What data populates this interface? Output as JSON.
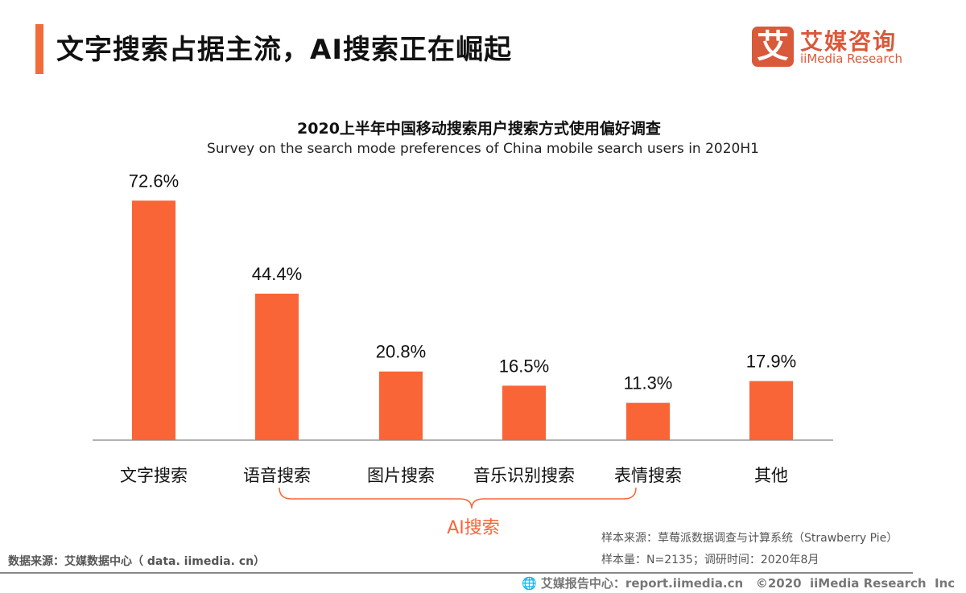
{
  "header": {
    "title": "文字搜索占据主流，AI搜索正在崛起",
    "logo_mark": "艾",
    "logo_cn": "艾媒咨询",
    "logo_en": "iiMedia Research"
  },
  "chart_data": {
    "type": "bar",
    "title": "2020上半年中国移动搜索用户搜索方式使用偏好调查",
    "subtitle": "Survey on the search mode preferences of China mobile search users in 2020H1",
    "categories": [
      "文字搜索",
      "语音搜索",
      "图片搜索",
      "音乐识别搜索",
      "表情搜索",
      "其他"
    ],
    "values": [
      72.6,
      44.4,
      20.8,
      16.5,
      11.3,
      17.9
    ],
    "data_labels": [
      "72.6%",
      "44.4%",
      "20.8%",
      "16.5%",
      "11.3%",
      "17.9%"
    ],
    "group_annotation": "AI搜索",
    "bar_color": "#f96536",
    "annotation_color": "#f96536",
    "ylim": [
      0,
      80
    ],
    "grid": false
  },
  "footer": {
    "source_left": "数据来源：艾媒数据中心（ data. iimedia. cn）",
    "sample_source": "样本来源：草莓派数据调查与计算系统（Strawberry Pie）",
    "sample_size": "样本量：N=2135；调研时间：2020年8月",
    "copyright": "艾媒报告中心：report.iimedia.cn   ©2020  iiMedia Research  Inc"
  }
}
